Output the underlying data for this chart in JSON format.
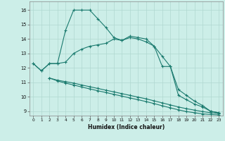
{
  "xlabel": "Humidex (Indice chaleur)",
  "ylabel_ticks": [
    9,
    10,
    11,
    12,
    13,
    14,
    15,
    16
  ],
  "xticks": [
    0,
    1,
    2,
    3,
    4,
    5,
    6,
    7,
    8,
    9,
    10,
    11,
    12,
    13,
    14,
    15,
    16,
    17,
    18,
    19,
    20,
    21,
    22,
    23
  ],
  "xlim": [
    -0.5,
    23.5
  ],
  "ylim": [
    8.7,
    16.6
  ],
  "bg_color": "#cceee8",
  "grid_color": "#b0d8d0",
  "line_color": "#1a7a6e",
  "series": [
    {
      "x": [
        0,
        1,
        2,
        3,
        4,
        5,
        6,
        7,
        8,
        9,
        10,
        11,
        12,
        13,
        14,
        15,
        16,
        17,
        18,
        19,
        20,
        21,
        22,
        23
      ],
      "y": [
        12.3,
        11.8,
        12.3,
        12.3,
        14.6,
        16.0,
        16.0,
        16.0,
        15.4,
        14.8,
        14.1,
        13.9,
        14.2,
        14.1,
        14.0,
        13.5,
        12.1,
        12.1,
        10.1,
        9.8,
        9.5,
        9.3,
        9.0,
        8.9
      ]
    },
    {
      "x": [
        0,
        1,
        2,
        3,
        4,
        5,
        6,
        7,
        8,
        9,
        10,
        11,
        12,
        13,
        14,
        15,
        16,
        17,
        18,
        19,
        20,
        21,
        22,
        23
      ],
      "y": [
        12.3,
        11.8,
        12.3,
        12.3,
        12.4,
        13.0,
        13.3,
        13.5,
        13.6,
        13.7,
        14.0,
        13.9,
        14.1,
        14.0,
        13.8,
        13.5,
        12.8,
        12.1,
        10.5,
        10.1,
        9.7,
        9.4,
        9.0,
        8.9
      ]
    },
    {
      "x": [
        2,
        3,
        4,
        5,
        6,
        7,
        8,
        9,
        10,
        11,
        12,
        13,
        14,
        15,
        16,
        17,
        18,
        19,
        20,
        21,
        22,
        23
      ],
      "y": [
        11.3,
        11.15,
        11.05,
        10.95,
        10.82,
        10.7,
        10.58,
        10.46,
        10.34,
        10.22,
        10.1,
        9.98,
        9.86,
        9.72,
        9.58,
        9.44,
        9.3,
        9.18,
        9.08,
        8.98,
        8.9,
        8.85
      ]
    },
    {
      "x": [
        2,
        3,
        4,
        5,
        6,
        7,
        8,
        9,
        10,
        11,
        12,
        13,
        14,
        15,
        16,
        17,
        18,
        19,
        20,
        21,
        22,
        23
      ],
      "y": [
        11.3,
        11.1,
        10.95,
        10.82,
        10.68,
        10.55,
        10.42,
        10.3,
        10.17,
        10.05,
        9.92,
        9.8,
        9.67,
        9.53,
        9.38,
        9.24,
        9.1,
        8.98,
        8.9,
        8.82,
        8.78,
        8.75
      ]
    }
  ]
}
